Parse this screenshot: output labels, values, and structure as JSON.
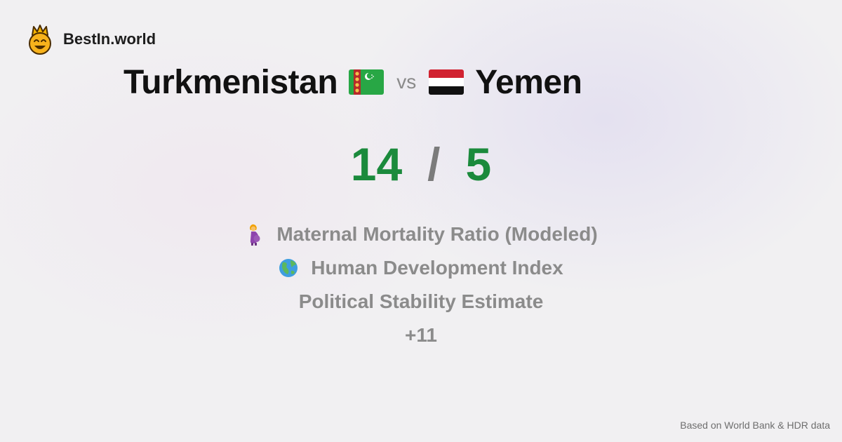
{
  "brand": {
    "name": "BestIn.world",
    "logo_icon": "crowned-smiley-icon"
  },
  "comparison": {
    "left_country": "Turkmenistan",
    "left_flag": "turkmenistan-flag-icon",
    "vs_label": "vs",
    "right_country": "Yemen",
    "right_flag": "yemen-flag-icon"
  },
  "scores": {
    "left": "14",
    "separator": "/",
    "right": "5",
    "color": "#1b8a3c"
  },
  "metrics": [
    {
      "label": "Maternal Mortality Ratio (Modeled)",
      "icon": "pregnant-woman-icon"
    },
    {
      "label": "Human Development Index",
      "icon": "globe-icon"
    },
    {
      "label": "Political Stability Estimate"
    },
    {
      "label": "+11"
    }
  ],
  "footer": {
    "source": "Based on World Bank & HDR data"
  }
}
